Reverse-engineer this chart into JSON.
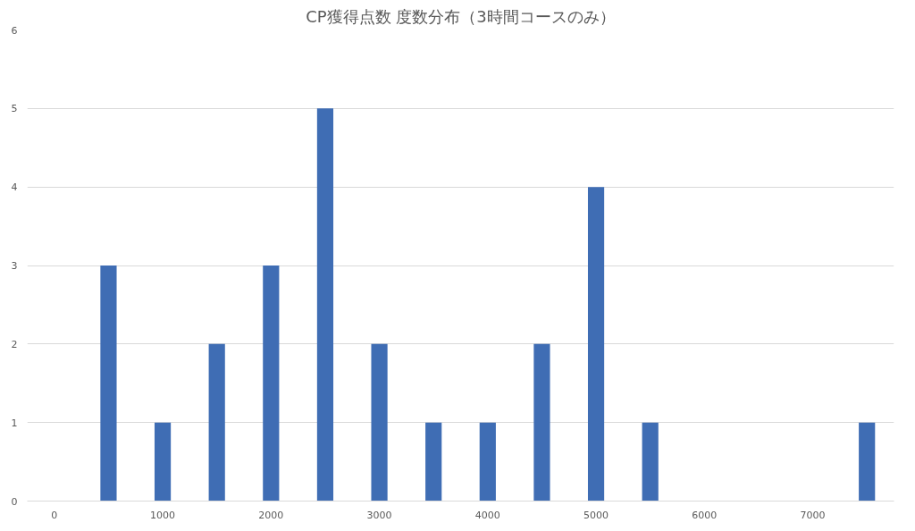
{
  "chart_data": {
    "type": "bar",
    "title": "CP獲得点数 度数分布（3時間コースのみ）",
    "categories": [
      "0",
      null,
      "1000",
      null,
      "2000",
      null,
      "3000",
      null,
      "4000",
      null,
      "5000",
      null,
      "6000",
      null,
      "7000",
      null
    ],
    "values": [
      0,
      3,
      1,
      2,
      3,
      5,
      2,
      1,
      1,
      2,
      4,
      1,
      0,
      0,
      0,
      1
    ],
    "color": "#3f6db4",
    "ylim": [
      0,
      6
    ],
    "yticks": [
      0,
      1,
      2,
      3,
      4,
      5,
      6
    ],
    "grid": "y"
  }
}
